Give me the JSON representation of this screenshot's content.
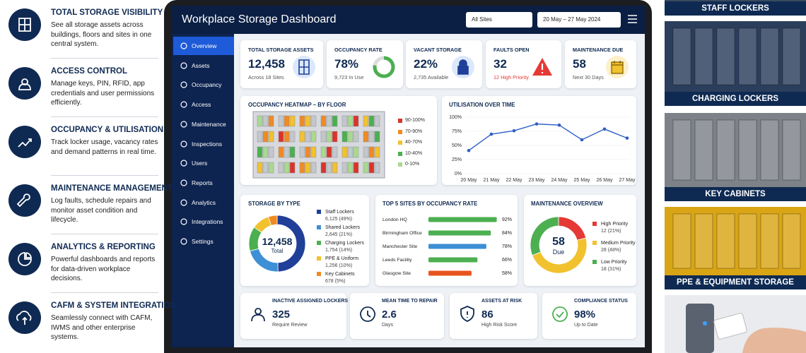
{
  "features": [
    {
      "title": "TOTAL STORAGE VISIBILITY",
      "text": "See all storage assets across buildings, floors and sites in one central system."
    },
    {
      "title": "ACCESS CONTROL",
      "text": "Manage keys, PIN, RFID, app credentials and user permissions efficiently."
    },
    {
      "title": "OCCUPANCY & UTILISATION",
      "text": "Track locker usage, vacancy rates and demand patterns in real time."
    },
    {
      "title": "MAINTENANCE MANAGEMENT",
      "text": "Log faults, schedule repairs and monitor asset condition and lifecycle."
    },
    {
      "title": "ANALYTICS & REPORTING",
      "text": "Powerful dashboards and reports for data-driven workplace decisions."
    },
    {
      "title": "CAFM & SYSTEM INTEGRATION",
      "text": "Seamlessly connect with CAFM, IWMS and other enterprise systems."
    }
  ],
  "dashboard": {
    "title": "Workplace Storage Dashboard",
    "site_filter": "All Sites",
    "date_range": "20 May – 27 May 2024",
    "nav": [
      "Overview",
      "Assets",
      "Occupancy",
      "Access",
      "Maintenance",
      "Inspections",
      "Users",
      "Reports",
      "Analytics",
      "Integrations",
      "Settings"
    ],
    "kpis": [
      {
        "label": "TOTAL STORAGE ASSETS",
        "value": "12,458",
        "sub": "Across 18 Sites"
      },
      {
        "label": "OCCUPANCY RATE",
        "value": "78%",
        "sub": "9,723 In Use"
      },
      {
        "label": "VACANT STORAGE",
        "value": "22%",
        "sub": "2,735 Available"
      },
      {
        "label": "FAULTS OPEN",
        "value": "32",
        "sub": "12 High Priority"
      },
      {
        "label": "MAINTENANCE DUE",
        "value": "58",
        "sub": "Next 30 Days"
      }
    ],
    "heatmap": {
      "title": "OCCUPANCY HEATMAP – BY FLOOR",
      "legend": [
        {
          "label": "90-100%",
          "color": "#d9342b"
        },
        {
          "label": "70-90%",
          "color": "#f08a24"
        },
        {
          "label": "40-70%",
          "color": "#f2c12e"
        },
        {
          "label": "10-40%",
          "color": "#4caf50"
        },
        {
          "label": "0-10%",
          "color": "#a9d98f"
        }
      ]
    },
    "utilisation": {
      "type": "line",
      "title": "UTILISATION OVER TIME",
      "categories": [
        "20 May",
        "21 May",
        "22 May",
        "23 May",
        "24 May",
        "25 May",
        "26 May",
        "27 May"
      ],
      "values": [
        41,
        70,
        76,
        88,
        86,
        60,
        79,
        63
      ],
      "color": "#2f5fc4",
      "ylim": [
        0,
        100
      ],
      "yticks": [
        {
          "value": 0,
          "label": "0%"
        },
        {
          "value": 25,
          "label": "25%"
        },
        {
          "value": 50,
          "label": "50%"
        },
        {
          "value": 75,
          "label": "75%"
        },
        {
          "value": 100,
          "label": "100%"
        }
      ]
    },
    "storage_by_type": {
      "type": "pie",
      "title": "STORAGE BY TYPE",
      "total": "12,458",
      "total_label": "Total",
      "categories": [
        "Staff Lockers",
        "Shared Lockers",
        "Charging Lockers",
        "PPE & Uniform",
        "Key Cabinets"
      ],
      "values": [
        49,
        21,
        14,
        10,
        5
      ],
      "value_labels": [
        "6,125 (49%)",
        "2,645 (21%)",
        "1,754 (14%)",
        "1,256 (10%)",
        "678 (5%)"
      ],
      "colors": [
        "#1f3f99",
        "#3d8fd6",
        "#4caf50",
        "#f2c12e",
        "#f08a24"
      ]
    },
    "top_sites": {
      "type": "bar",
      "title": "TOP 5 SITES BY OCCUPANCY RATE",
      "categories": [
        "London HQ",
        "Birmingham Office",
        "Manchester Site",
        "Leeds Facility",
        "Glasgow Site"
      ],
      "values": [
        92,
        84,
        78,
        66,
        58
      ],
      "value_labels": [
        "92%",
        "84%",
        "78%",
        "66%",
        "58%"
      ],
      "xlim": [
        0,
        100
      ],
      "colors": [
        "#4caf50",
        "#4caf50",
        "#3d8fd6",
        "#4caf50",
        "#e8541e"
      ]
    },
    "maintenance": {
      "type": "pie",
      "title": "MAINTENANCE OVERVIEW",
      "center_value": "58",
      "center_label": "Due",
      "categories": [
        "High Priority",
        "Medium Priority",
        "Low Priority"
      ],
      "values": [
        21,
        48,
        31
      ],
      "value_labels": [
        "12 (21%)",
        "28 (48%)",
        "18 (31%)"
      ],
      "colors": [
        "#e53935",
        "#f2c12e",
        "#4caf50"
      ]
    },
    "stats": [
      {
        "label": "INACTIVE ASSIGNED LOCKERS",
        "value": "325",
        "sub": "Require Review"
      },
      {
        "label": "MEAN TIME TO REPAIR",
        "value": "2.6",
        "sub": "Days"
      },
      {
        "label": "ASSETS AT RISK",
        "value": "86",
        "sub": "High Risk Score"
      },
      {
        "label": "COMPLIANCE STATUS",
        "value": "98%",
        "sub": "Up to Date"
      }
    ]
  },
  "products": [
    "STAFF LOCKERS",
    "CHARGING LOCKERS",
    "KEY CABINETS",
    "PPE & EQUIPMENT STORAGE"
  ]
}
